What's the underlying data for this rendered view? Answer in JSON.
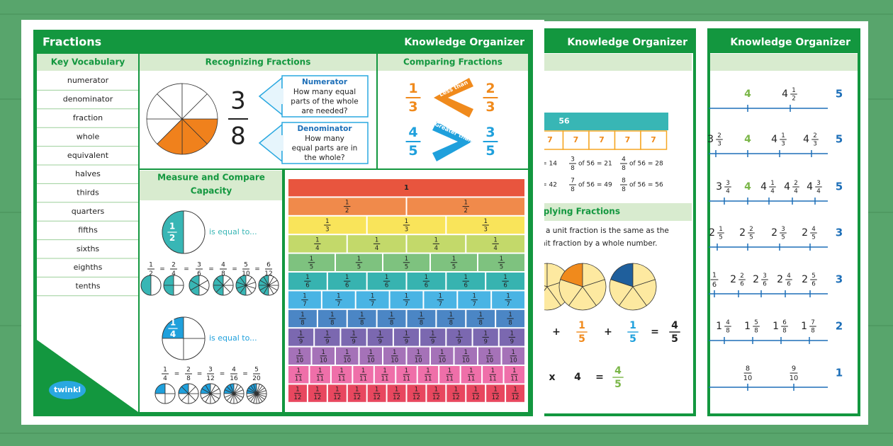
{
  "main": {
    "title": "Fractions",
    "header": "Knowledge Organizer",
    "logo": "twinkl"
  },
  "vocabulary": {
    "title": "Key Vocabulary",
    "items": [
      "numerator",
      "denominator",
      "fraction",
      "whole",
      "equivalent",
      "halves",
      "thirds",
      "quarters",
      "fifths",
      "sixths",
      "eighths",
      "tenths"
    ]
  },
  "recognizing": {
    "title": "Recognizing Fractions",
    "numerator": "3",
    "denominator": "8",
    "boxes": [
      {
        "title": "Numerator",
        "text": [
          "How many equal",
          "parts of the whole",
          "are needed?"
        ]
      },
      {
        "title": "Denominator",
        "text": [
          "How many",
          "equal parts are in",
          "the whole?"
        ]
      }
    ]
  },
  "comparing": {
    "title": "Comparing Fractions",
    "rows": [
      {
        "left": [
          "1",
          "3"
        ],
        "label": "Less than",
        "right": [
          "2",
          "3"
        ]
      },
      {
        "left": [
          "4",
          "5"
        ],
        "label": "Greater than",
        "right": [
          "3",
          "5"
        ]
      }
    ]
  },
  "capacity": {
    "title": [
      "Measure and Compare",
      "Capacity"
    ],
    "groups": [
      {
        "fraction": [
          "1",
          "2"
        ],
        "caption": "is equal to...",
        "sign": "=",
        "equivalents": [
          [
            "1",
            "2"
          ],
          [
            "2",
            "4"
          ],
          [
            "3",
            "6"
          ],
          [
            "4",
            "8"
          ],
          [
            "5",
            "10"
          ],
          [
            "6",
            "12"
          ]
        ]
      },
      {
        "fraction": [
          "1",
          "4"
        ],
        "caption": "is equal to...",
        "sign": "=",
        "equivalents": [
          [
            "1",
            "4"
          ],
          [
            "2",
            "8"
          ],
          [
            "3",
            "12"
          ],
          [
            "4",
            "16"
          ],
          [
            "5",
            "20"
          ]
        ]
      }
    ]
  },
  "wall": {
    "whole": "1",
    "numerator": "1",
    "denominators": [
      "2",
      "3",
      "4",
      "5",
      "6",
      "7",
      "8",
      "9",
      "10",
      "11",
      "12"
    ]
  },
  "page2": {
    "header": "Knowledge Organizer",
    "bar": "56",
    "parts": [
      "7",
      "7",
      "7",
      "7",
      "7"
    ],
    "facts": [
      [
        {
          "text": "= 14"
        },
        {
          "n": "3",
          "d": "8",
          "text": "of 56 = 21"
        },
        {
          "n": "4",
          "d": "8",
          "text": "of 56 = 28"
        }
      ],
      [
        {
          "text": "= 42"
        },
        {
          "n": "7",
          "d": "8",
          "text": "of 56 = 49"
        },
        {
          "n": "8",
          "d": "8",
          "text": "of 56 = 56"
        }
      ]
    ],
    "section": "plying Fractions",
    "text": [
      "f a unit fraction is the same as the",
      "nit fraction by a whole number."
    ],
    "addition": [
      "+",
      {
        "n": "1",
        "d": "5"
      },
      "+",
      {
        "n": "1",
        "d": "5"
      },
      "=",
      {
        "n": "4",
        "d": "5"
      }
    ],
    "multiplication": [
      "x",
      "4",
      "=",
      {
        "n": "4",
        "d": "5"
      }
    ]
  },
  "page3": {
    "header": "Knowledge Organizer",
    "rows": [
      {
        "labels": [
          {
            "w": "4"
          },
          {
            "w": "4",
            "n": "1",
            "d": "2"
          }
        ],
        "end": "5"
      },
      {
        "labels": [
          {
            "w": "3",
            "n": "2",
            "d": "3"
          },
          {
            "w": "4"
          },
          {
            "w": "4",
            "n": "1",
            "d": "3"
          },
          {
            "w": "4",
            "n": "2",
            "d": "3"
          }
        ],
        "end": "5"
      },
      {
        "labels": [
          {
            "w": "3",
            "n": "3",
            "d": "4"
          },
          {
            "w": "4"
          },
          {
            "w": "4",
            "n": "1",
            "d": "4"
          },
          {
            "w": "4",
            "n": "2",
            "d": "4"
          },
          {
            "w": "4",
            "n": "3",
            "d": "4"
          }
        ],
        "end": "5"
      },
      {
        "labels": [
          {
            "w": "2",
            "n": "1",
            "d": "5"
          },
          {
            "w": "2",
            "n": "2",
            "d": "5"
          },
          {
            "w": "2",
            "n": "3",
            "d": "5"
          },
          {
            "w": "2",
            "n": "4",
            "d": "5"
          }
        ],
        "end": "3"
      },
      {
        "labels": [
          {
            "n": "1",
            "d": "6"
          },
          {
            "w": "2",
            "n": "2",
            "d": "6"
          },
          {
            "w": "2",
            "n": "3",
            "d": "6"
          },
          {
            "w": "2",
            "n": "4",
            "d": "6"
          },
          {
            "w": "2",
            "n": "5",
            "d": "6"
          }
        ],
        "end": "3"
      },
      {
        "labels": [
          {
            "w": "1",
            "n": "4",
            "d": "8"
          },
          {
            "w": "1",
            "n": "5",
            "d": "8"
          },
          {
            "w": "1",
            "n": "6",
            "d": "8"
          },
          {
            "w": "1",
            "n": "7",
            "d": "8"
          }
        ],
        "end": "2"
      },
      {
        "labels": [
          {
            "n": "8",
            "d": "10"
          },
          {
            "n": "9",
            "d": "10"
          }
        ],
        "end": "1"
      }
    ]
  }
}
